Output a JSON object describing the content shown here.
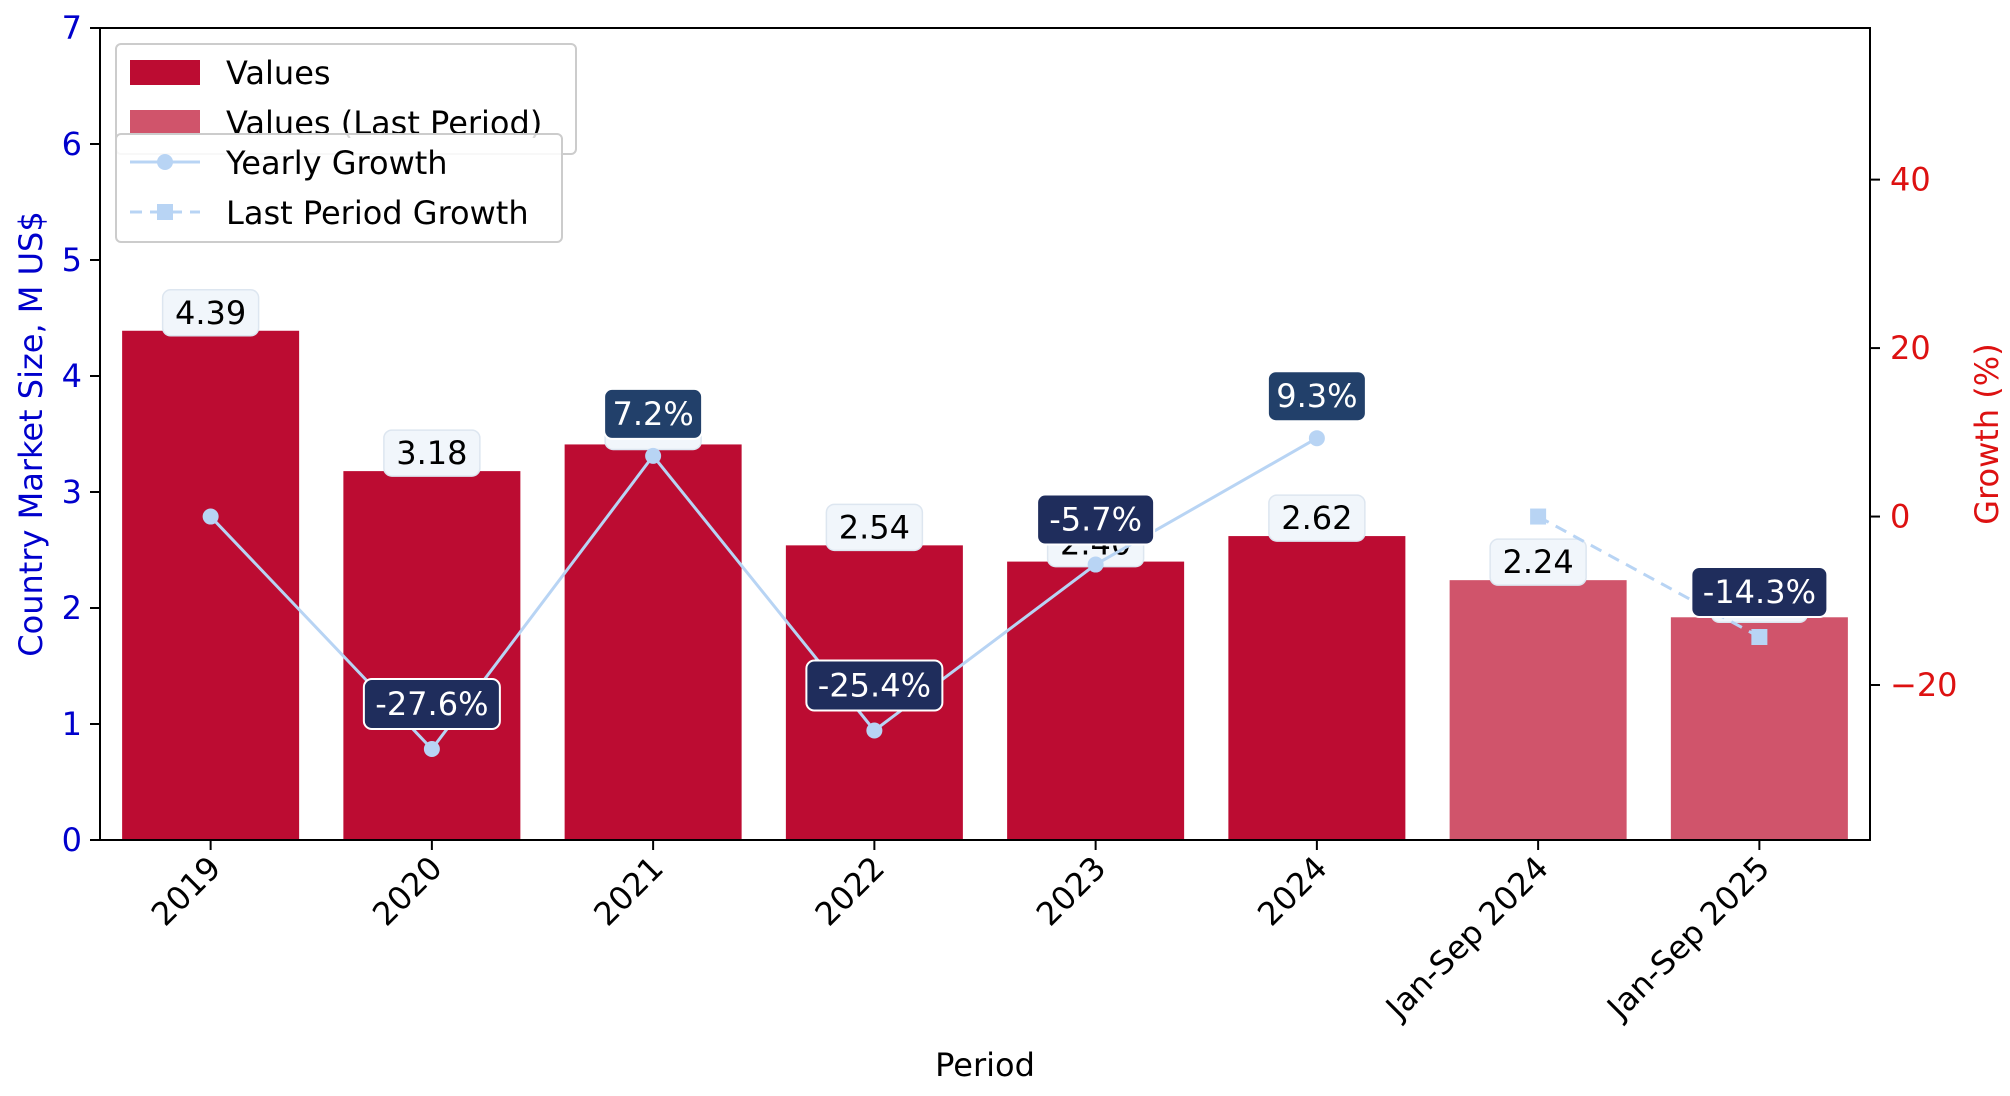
{
  "chart_data": {
    "type": "bar",
    "categories": [
      "2019",
      "2020",
      "2021",
      "2022",
      "2023",
      "2024",
      "Jan-Sep 2024",
      "Jan-Sep 2025"
    ],
    "values": [
      4.39,
      3.18,
      3.41,
      2.54,
      2.4,
      2.62,
      2.24,
      1.92
    ],
    "value_labels": [
      "4.39",
      "3.18",
      "3.41",
      "2.54",
      "2.40",
      "2.62",
      "2.24",
      "1.92"
    ],
    "last_period_start_index": 6,
    "xlabel": "Period",
    "ylabel": "Country Market Size, M US$",
    "y2label": "Growth (%)",
    "ylim": [
      0,
      7
    ],
    "y2lim": [
      -38.4,
      58
    ],
    "yticks": [
      0,
      1,
      2,
      3,
      4,
      5,
      6,
      7
    ],
    "y2ticks": [
      -20,
      0,
      20,
      40
    ],
    "ytick_labels": [
      "0",
      "1",
      "2",
      "3",
      "4",
      "5",
      "6",
      "7"
    ],
    "y2tick_labels": [
      "−20",
      "0",
      "20",
      "40"
    ],
    "growth_series": [
      {
        "name": "Yearly Growth",
        "style": "solid",
        "marker": "circle",
        "points": [
          {
            "index": 0,
            "value": 0,
            "label": ""
          },
          {
            "index": 1,
            "value": -27.6,
            "label": "-27.6%"
          },
          {
            "index": 2,
            "value": 7.2,
            "label": "7.2%"
          },
          {
            "index": 3,
            "value": -25.4,
            "label": "-25.4%"
          },
          {
            "index": 4,
            "value": -5.7,
            "label": "-5.7%"
          },
          {
            "index": 5,
            "value": 9.3,
            "label": "9.3%"
          }
        ]
      },
      {
        "name": "Last Period Growth",
        "style": "dashed",
        "marker": "square",
        "points": [
          {
            "index": 6,
            "value": 0,
            "label": ""
          },
          {
            "index": 7,
            "value": -14.3,
            "label": "-14.3%"
          }
        ]
      }
    ],
    "legend_bars": [
      "Values",
      "Values (Last Period)"
    ],
    "legend_lines": [
      "Yearly Growth",
      "Last Period Growth"
    ],
    "legend_position": "top-left",
    "colors": {
      "bar": "#bc0c32",
      "bar_last_period": "#d0546b",
      "line": "#b8d4f4",
      "growth_label_bg_neg": "#1f2d5c",
      "growth_label_bg_pos": "#22406a",
      "value_label_bg": "#f1f6fb",
      "left_axis": "#0000cc",
      "right_axis": "#dd1111"
    },
    "grid": false
  }
}
